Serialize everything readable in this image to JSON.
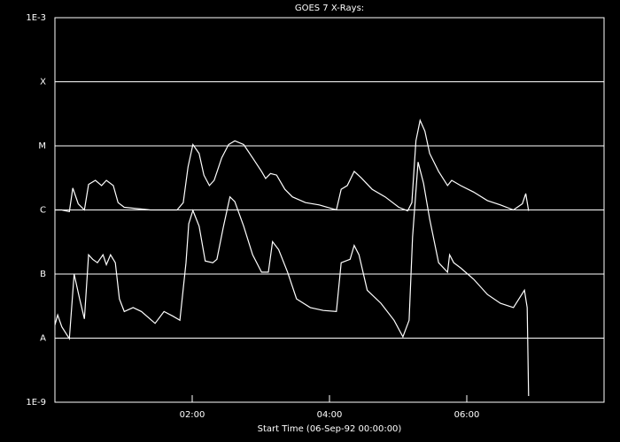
{
  "chart_data": {
    "type": "line",
    "title": "GOES 7 X-Rays:",
    "x_label": "Start Time (06-Sep-92 00:00:00)",
    "xlim": [
      0,
      8
    ],
    "xticks": [
      {
        "value": 2,
        "label": "02:00"
      },
      {
        "value": 4,
        "label": "04:00"
      },
      {
        "value": 6,
        "label": "06:00"
      }
    ],
    "ylim": [
      1e-09,
      0.001
    ],
    "y_log_scale": true,
    "grid": true,
    "yticks": [
      {
        "value": 1e-09,
        "label": "1E-9"
      },
      {
        "value": 1e-08,
        "label": "A"
      },
      {
        "value": 1e-07,
        "label": "B"
      },
      {
        "value": 1e-06,
        "label": "C"
      },
      {
        "value": 1e-05,
        "label": "M"
      },
      {
        "value": 0.0001,
        "label": "X"
      },
      {
        "value": 0.001,
        "label": "1E-3"
      }
    ],
    "series": [
      {
        "color": "#ffffff",
        "x": [
          0.0,
          0.1,
          0.21,
          0.26,
          0.34,
          0.43,
          0.49,
          0.59,
          0.68,
          0.75,
          0.85,
          0.92,
          1.01,
          1.39,
          1.78,
          1.87,
          1.94,
          2.01,
          2.1,
          2.17,
          2.25,
          2.32,
          2.43,
          2.53,
          2.62,
          2.75,
          2.88,
          3.01,
          3.07,
          3.14,
          3.23,
          3.35,
          3.46,
          3.65,
          3.85,
          4.1,
          4.17,
          4.26,
          4.36,
          4.46,
          4.62,
          4.81,
          5.01,
          5.14,
          5.2,
          5.26,
          5.32,
          5.39,
          5.46,
          5.59,
          5.72,
          5.78,
          5.91,
          6.1,
          6.3,
          6.49,
          6.68,
          6.81,
          6.86,
          6.9
        ],
        "values": [
          1e-06,
          1e-06,
          9.4e-07,
          2.2e-06,
          1.25e-06,
          1e-06,
          2.5e-06,
          2.9e-06,
          2.4e-06,
          2.9e-06,
          2.4e-06,
          1.3e-06,
          1.1e-06,
          1e-06,
          1e-06,
          1.3e-06,
          4.7e-06,
          1.05e-05,
          7.6e-06,
          3.5e-06,
          2.4e-06,
          2.9e-06,
          6.5e-06,
          1.05e-05,
          1.2e-05,
          1.05e-05,
          6.5e-06,
          4e-06,
          3.1e-06,
          3.7e-06,
          3.5e-06,
          2.1e-06,
          1.6e-06,
          1.3e-06,
          1.2e-06,
          1e-06,
          2.1e-06,
          2.4e-06,
          4e-06,
          3.2e-06,
          2.1e-06,
          1.6e-06,
          1.1e-06,
          9.7e-07,
          1.3e-06,
          1.2e-05,
          2.5e-05,
          1.7e-05,
          7.6e-06,
          4e-06,
          2.4e-06,
          2.9e-06,
          2.4e-06,
          1.9e-06,
          1.4e-06,
          1.2e-06,
          1e-06,
          1.25e-06,
          1.8e-06,
          9.7e-07
        ]
      },
      {
        "color": "#ffffff",
        "x": [
          0.0,
          0.04,
          0.1,
          0.21,
          0.28,
          0.36,
          0.43,
          0.49,
          0.55,
          0.62,
          0.7,
          0.75,
          0.81,
          0.88,
          0.94,
          1.01,
          1.14,
          1.26,
          1.46,
          1.59,
          1.72,
          1.82,
          1.91,
          1.95,
          2.01,
          2.1,
          2.19,
          2.3,
          2.36,
          2.45,
          2.55,
          2.62,
          2.75,
          2.88,
          3.01,
          3.11,
          3.17,
          3.26,
          3.39,
          3.52,
          3.72,
          3.91,
          4.1,
          4.17,
          4.3,
          4.36,
          4.43,
          4.55,
          4.75,
          4.94,
          5.07,
          5.16,
          5.21,
          5.29,
          5.37,
          5.46,
          5.59,
          5.72,
          5.75,
          5.81,
          5.91,
          6.1,
          6.3,
          6.49,
          6.68,
          6.84,
          6.88,
          6.9
        ],
        "values": [
          1.6e-08,
          2.3e-08,
          1.5e-08,
          9.8e-09,
          1e-07,
          4.1e-08,
          2e-08,
          2e-07,
          1.7e-07,
          1.5e-07,
          2e-07,
          1.4e-07,
          2e-07,
          1.5e-07,
          4.1e-08,
          2.6e-08,
          3e-08,
          2.6e-08,
          1.7e-08,
          2.6e-08,
          2.2e-08,
          1.9e-08,
          1.5e-07,
          6.1e-07,
          9.8e-07,
          5.6e-07,
          1.6e-07,
          1.5e-07,
          1.7e-07,
          5.2e-07,
          1.6e-06,
          1.35e-06,
          5.6e-07,
          2e-07,
          1.07e-07,
          1.07e-07,
          3.2e-07,
          2.4e-07,
          1.07e-07,
          4.1e-08,
          3e-08,
          2.7e-08,
          2.6e-08,
          1.5e-07,
          1.7e-07,
          2.8e-07,
          2e-07,
          5.6e-08,
          3.5e-08,
          1.9e-08,
          1.05e-08,
          1.9e-08,
          3.8e-07,
          5.6e-06,
          2.6e-06,
          7.2e-07,
          1.5e-07,
          1.07e-07,
          2e-07,
          1.5e-07,
          1.25e-07,
          8.3e-08,
          4.8e-08,
          3.5e-08,
          3e-08,
          5.6e-08,
          3e-08,
          1.25e-09
        ]
      }
    ]
  }
}
